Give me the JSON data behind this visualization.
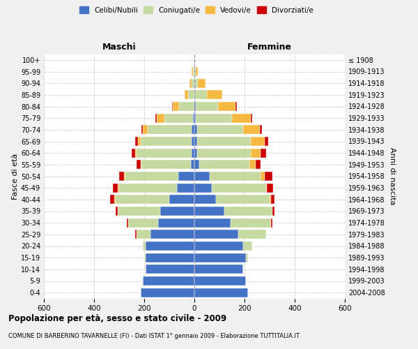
{
  "age_groups": [
    "0-4",
    "5-9",
    "10-14",
    "15-19",
    "20-24",
    "25-29",
    "30-34",
    "35-39",
    "40-44",
    "45-49",
    "50-54",
    "55-59",
    "60-64",
    "65-69",
    "70-74",
    "75-79",
    "80-84",
    "85-89",
    "90-94",
    "95-99",
    "100+"
  ],
  "birth_years": [
    "2004-2008",
    "1999-2003",
    "1994-1998",
    "1989-1993",
    "1984-1988",
    "1979-1983",
    "1974-1978",
    "1969-1973",
    "1964-1968",
    "1959-1963",
    "1954-1958",
    "1949-1953",
    "1944-1948",
    "1939-1943",
    "1934-1938",
    "1929-1933",
    "1924-1928",
    "1919-1923",
    "1914-1918",
    "1909-1913",
    "≤ 1908"
  ],
  "male_celibi": [
    215,
    205,
    195,
    195,
    195,
    175,
    145,
    135,
    100,
    70,
    65,
    15,
    10,
    10,
    10,
    5,
    0,
    0,
    0,
    0,
    0
  ],
  "male_coniugati": [
    0,
    0,
    0,
    5,
    10,
    55,
    120,
    170,
    215,
    230,
    210,
    195,
    220,
    205,
    175,
    115,
    60,
    25,
    10,
    5,
    2
  ],
  "male_vedovi": [
    0,
    0,
    0,
    0,
    0,
    0,
    0,
    0,
    5,
    5,
    5,
    5,
    5,
    10,
    20,
    30,
    25,
    15,
    10,
    5,
    0
  ],
  "male_divorziati": [
    0,
    0,
    0,
    0,
    0,
    5,
    5,
    10,
    15,
    20,
    20,
    15,
    15,
    10,
    5,
    5,
    5,
    0,
    0,
    0,
    0
  ],
  "female_celibi": [
    215,
    205,
    195,
    205,
    195,
    175,
    145,
    120,
    85,
    70,
    60,
    20,
    10,
    10,
    10,
    5,
    5,
    0,
    0,
    0,
    0
  ],
  "female_coniugati": [
    0,
    0,
    0,
    10,
    35,
    110,
    160,
    190,
    215,
    215,
    205,
    200,
    215,
    215,
    185,
    145,
    90,
    50,
    15,
    5,
    0
  ],
  "female_vedovi": [
    0,
    0,
    0,
    0,
    0,
    0,
    0,
    0,
    5,
    5,
    15,
    25,
    40,
    55,
    65,
    75,
    70,
    60,
    30,
    10,
    2
  ],
  "female_divorziati": [
    0,
    0,
    0,
    0,
    0,
    0,
    5,
    10,
    15,
    25,
    30,
    20,
    20,
    15,
    10,
    5,
    5,
    0,
    0,
    0,
    0
  ],
  "colors": {
    "celibi": "#4472C4",
    "coniugati": "#c5d9a0",
    "vedovi": "#f5b942",
    "divorziati": "#cc0000"
  },
  "title": "Popolazione per età, sesso e stato civile - 2009",
  "subtitle": "COMUNE DI BARBERINO TAVARNELLE (FI) - Dati ISTAT 1° gennaio 2009 - Elaborazione TUTTITALIA.IT",
  "xlabel_left": "Maschi",
  "xlabel_right": "Femmine",
  "ylabel_left": "Fasce di età",
  "ylabel_right": "Anni di nascita",
  "xlim": 600,
  "bg_color": "#f0f0f0",
  "plot_bg": "#ffffff",
  "grid_color": "#cccccc"
}
